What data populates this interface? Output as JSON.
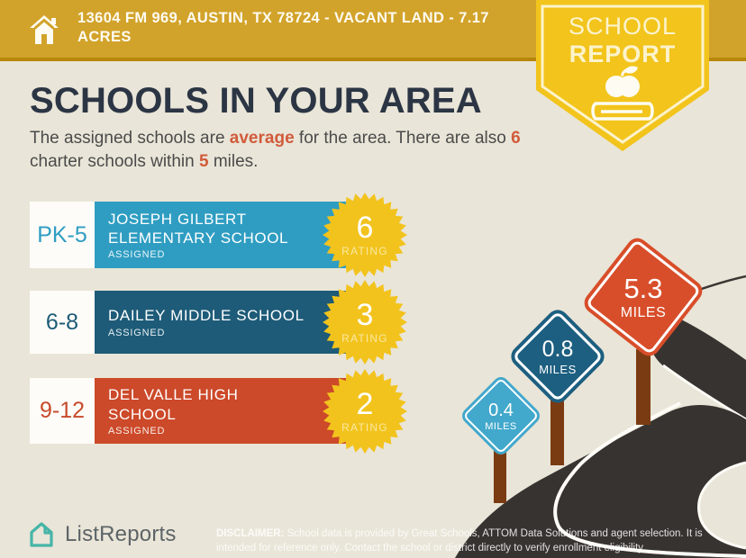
{
  "colors": {
    "background": "#e9e5d8",
    "header_gold": "#d2a32a",
    "header_gold_dark": "#b8860b",
    "badge_yellow": "#f2c41c",
    "badge_cream": "#fcf3cc",
    "title_navy": "#2b3544",
    "body_text": "#4b4b4b",
    "accent_orange": "#d15b3b",
    "elementary_blue": "#2f9dc2",
    "middle_blue": "#1d5b78",
    "high_red": "#cc4929",
    "rating_gold": "#f2c31d",
    "road_dark": "#373330",
    "post_brown": "#7b3b12",
    "sign_light_blue": "#42a8cc",
    "sign_dark_blue": "#1d5f80",
    "sign_red": "#d84e2a",
    "logo_teal": "#46b5a7"
  },
  "header": {
    "address": "13604 FM 969, AUSTIN, TX 78724 - VACANT LAND - 7.17 ACRES"
  },
  "badge": {
    "line1": "SCHOOL",
    "line2": "REPORT"
  },
  "intro": {
    "title": "SCHOOLS IN YOUR AREA",
    "subtitle": {
      "seg1": "The assigned schools are ",
      "hl1": "average",
      "seg2": " for the area. There are also ",
      "hl2": "6",
      "seg3": " charter schools within ",
      "hl3": "5",
      "seg4": " miles."
    }
  },
  "schools": [
    {
      "grade": "PK-5",
      "name_line1": "JOSEPH GILBERT",
      "name_line2": "ELEMENTARY SCHOOL",
      "status": "ASSIGNED",
      "rating": "6",
      "rating_label": "RATING"
    },
    {
      "grade": "6-8",
      "name_line1": "DAILEY MIDDLE SCHOOL",
      "name_line2": "",
      "status": "ASSIGNED",
      "rating": "3",
      "rating_label": "RATING"
    },
    {
      "grade": "9-12",
      "name_line1": "DEL VALLE HIGH",
      "name_line2": "SCHOOL",
      "status": "ASSIGNED",
      "rating": "2",
      "rating_label": "RATING"
    }
  ],
  "signs": [
    {
      "value": "0.4",
      "unit": "MILES"
    },
    {
      "value": "0.8",
      "unit": "MILES"
    },
    {
      "value": "5.3",
      "unit": "MILES"
    }
  ],
  "footer": {
    "brand": "ListReports",
    "disclaimer_label": "DISCLAIMER:",
    "disclaimer_text": " School data is provided by Great Schools, ATTOM Data Solutions and agent selection. It is intended for reference only. Contact the school or district directly to verify enrollment eligibility."
  }
}
